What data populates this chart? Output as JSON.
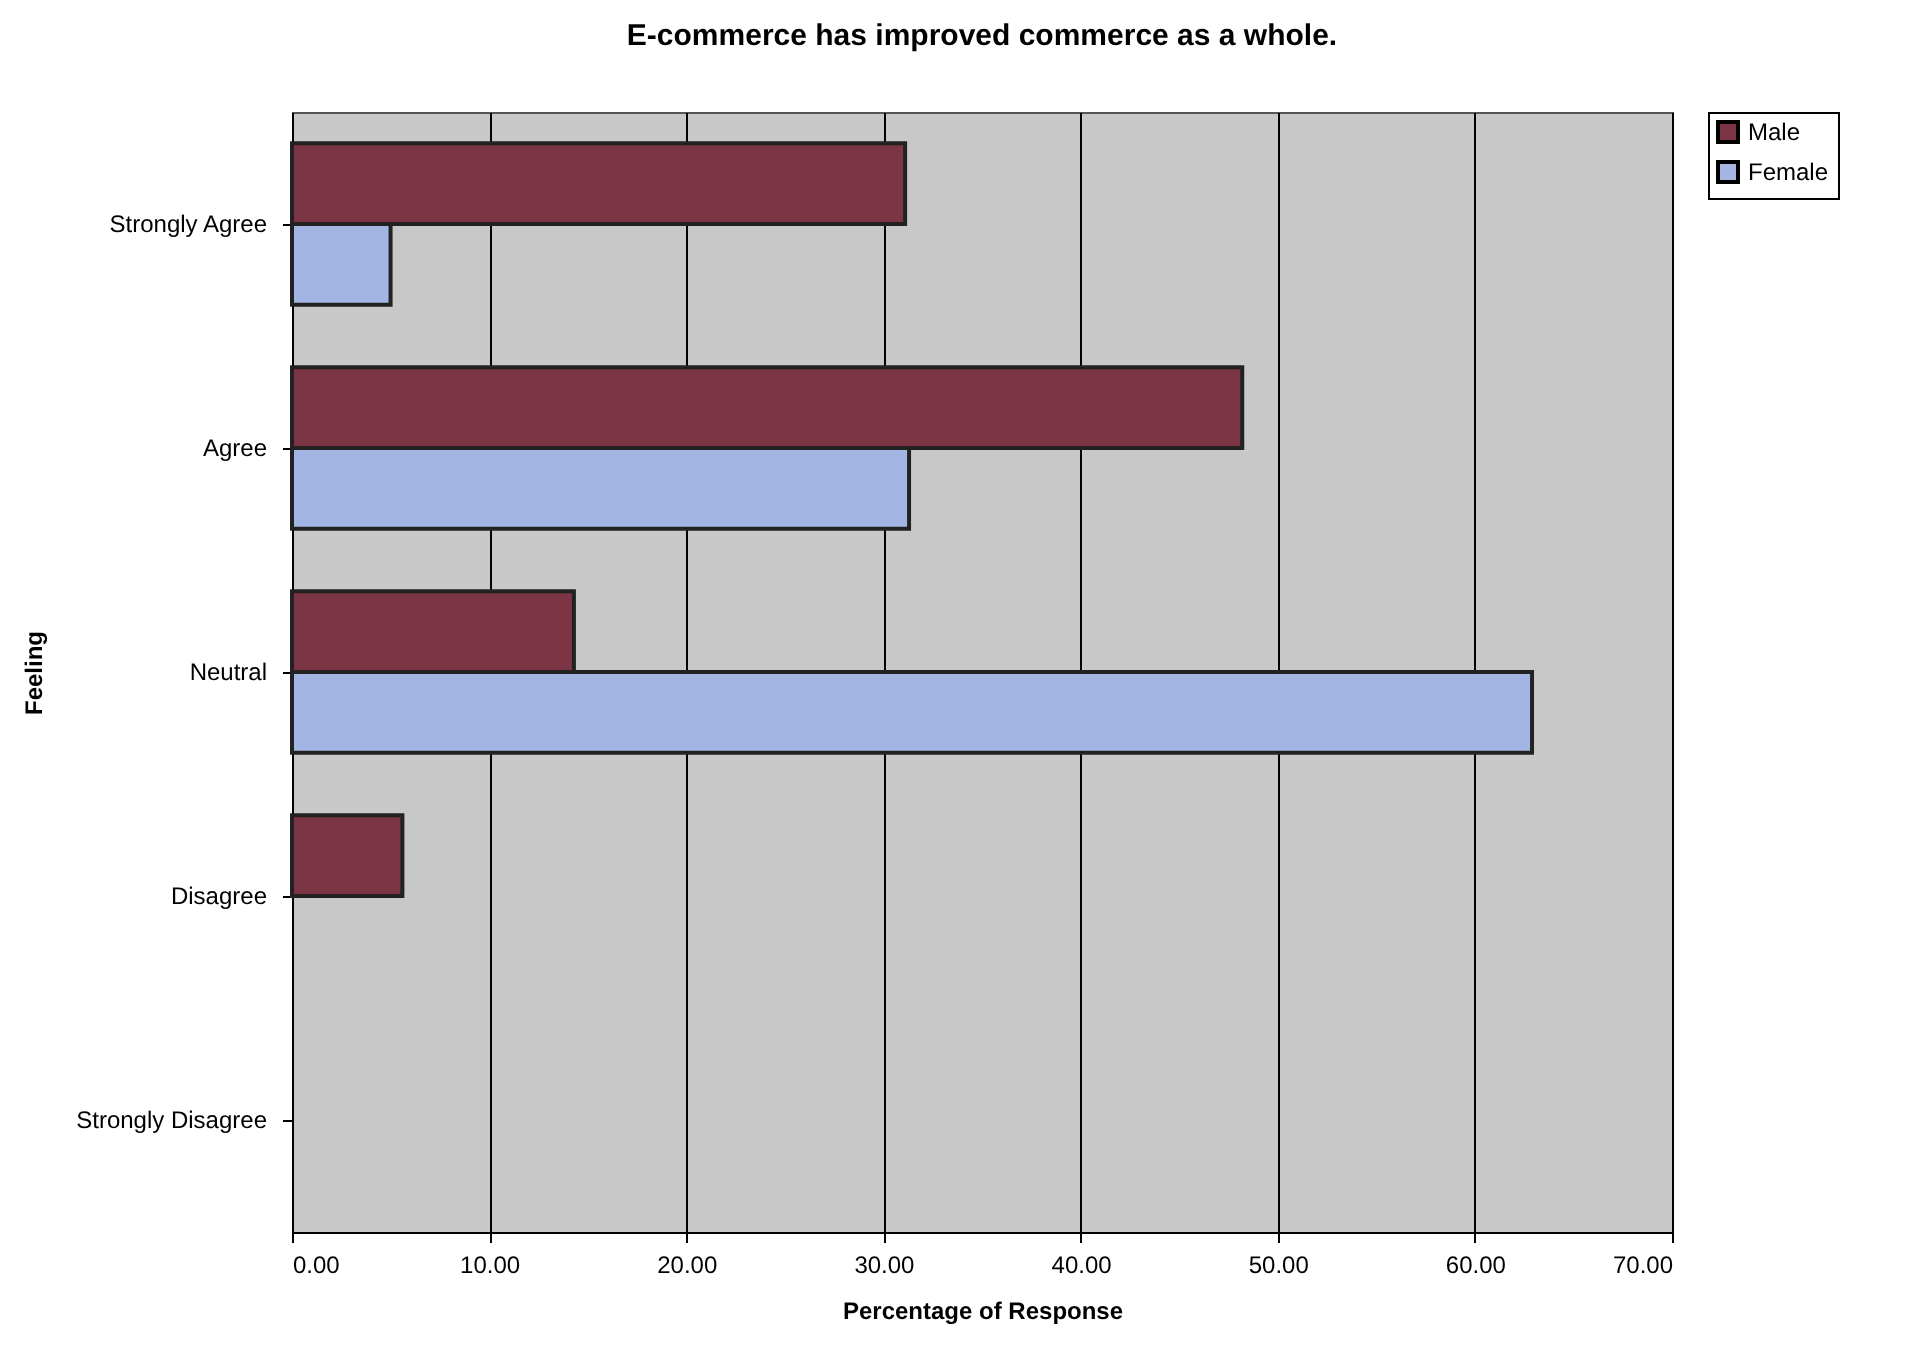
{
  "chart_data": {
    "type": "bar",
    "orientation": "horizontal",
    "title": "E-commerce has improved commerce as a whole.",
    "xlabel": "Percentage of Response",
    "ylabel": "Feeling",
    "categories": [
      "Strongly Agree",
      "Agree",
      "Neutral",
      "Disagree",
      "Strongly Disagree"
    ],
    "series": [
      {
        "name": "Male",
        "color": "#7b3544",
        "values": [
          31.1,
          48.2,
          14.3,
          5.6,
          null
        ]
      },
      {
        "name": "Female",
        "color": "#a3b6e3",
        "values": [
          5.0,
          31.3,
          62.9,
          null,
          null
        ]
      }
    ],
    "xlim": [
      0,
      70
    ],
    "xticks": [
      {
        "value": 0,
        "label": "0.00"
      },
      {
        "value": 10,
        "label": "10.00"
      },
      {
        "value": 20,
        "label": "20.00"
      },
      {
        "value": 30,
        "label": "30.00"
      },
      {
        "value": 40,
        "label": "40.00"
      },
      {
        "value": 50,
        "label": "50.00"
      },
      {
        "value": 60,
        "label": "60.00"
      },
      {
        "value": 70,
        "label": "70.00"
      }
    ],
    "grid": "x",
    "legend": "right"
  }
}
